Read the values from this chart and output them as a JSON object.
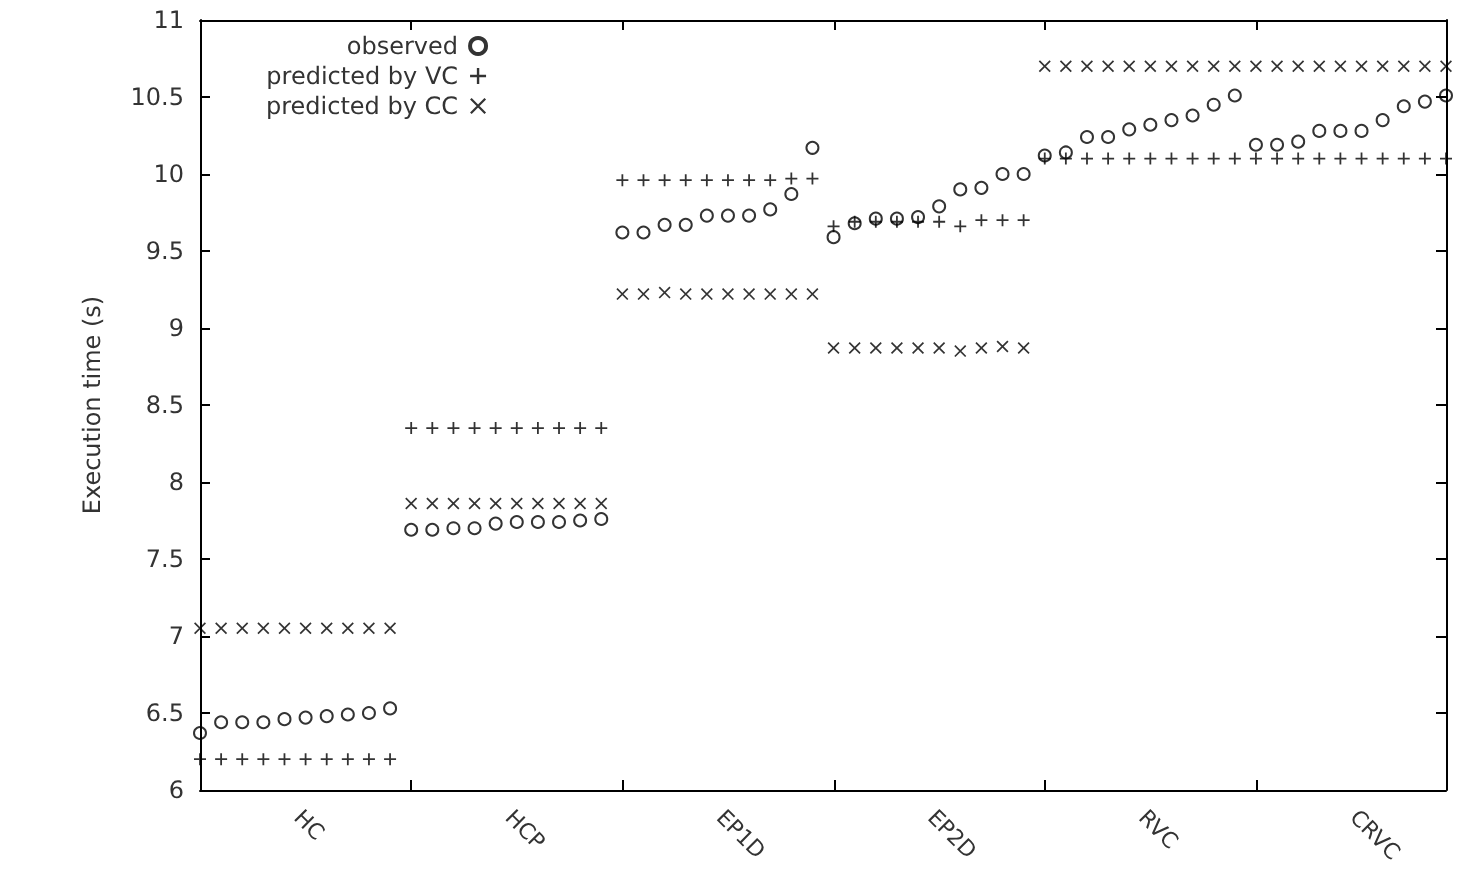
{
  "chart_data": {
    "type": "scatter",
    "ylabel": "Execution time (s)",
    "categories": [
      null,
      null,
      null,
      null,
      null,
      "HC",
      null,
      null,
      null,
      null,
      null,
      null,
      null,
      null,
      null,
      "HCP",
      null,
      null,
      null,
      null,
      null,
      null,
      null,
      null,
      null,
      "EP1D",
      null,
      null,
      null,
      null,
      null,
      null,
      null,
      null,
      null,
      "EP2D",
      null,
      null,
      null,
      null,
      null,
      null,
      null,
      null,
      null,
      "RVC",
      null,
      null,
      null,
      null,
      null,
      null,
      null,
      null,
      null,
      "CRVC",
      null,
      null,
      null,
      null
    ],
    "ylim": [
      6,
      11
    ],
    "yticks": [
      6,
      6.5,
      7,
      7.5,
      8,
      8.5,
      9,
      9.5,
      10,
      10.5,
      11
    ],
    "grid": false,
    "legend": "top left",
    "series": [
      {
        "name": "observed",
        "color": "#000000",
        "marker": "circle",
        "values": [
          6.37,
          6.44,
          6.44,
          6.44,
          6.46,
          6.47,
          6.48,
          6.49,
          6.5,
          6.53,
          7.69,
          7.69,
          7.7,
          7.7,
          7.73,
          7.74,
          7.74,
          7.74,
          7.75,
          7.76,
          9.62,
          9.62,
          9.67,
          9.67,
          9.73,
          9.73,
          9.73,
          9.77,
          9.87,
          10.17,
          9.59,
          9.68,
          9.71,
          9.71,
          9.72,
          9.79,
          9.9,
          9.91,
          10.0,
          10.0,
          10.12,
          10.14,
          10.24,
          10.24,
          10.29,
          10.32,
          10.35,
          10.38,
          10.45,
          10.51,
          10.19,
          10.19,
          10.21,
          10.28,
          10.28,
          10.28,
          10.35,
          10.44,
          10.47,
          10.51
        ]
      },
      {
        "name": "predicted by VC",
        "color": "#000000",
        "marker": "plus",
        "values": [
          6.2,
          6.2,
          6.2,
          6.2,
          6.2,
          6.2,
          6.2,
          6.2,
          6.2,
          6.2,
          8.35,
          8.35,
          8.35,
          8.35,
          8.35,
          8.35,
          8.35,
          8.35,
          8.35,
          8.35,
          9.96,
          9.96,
          9.96,
          9.96,
          9.96,
          9.96,
          9.96,
          9.96,
          9.97,
          9.97,
          9.66,
          9.69,
          9.69,
          9.69,
          9.69,
          9.69,
          9.66,
          9.7,
          9.7,
          9.7,
          10.1,
          10.1,
          10.1,
          10.1,
          10.1,
          10.1,
          10.1,
          10.1,
          10.1,
          10.1,
          10.1,
          10.1,
          10.1,
          10.1,
          10.1,
          10.1,
          10.1,
          10.1,
          10.1,
          10.1
        ]
      },
      {
        "name": "predicted by CC",
        "color": "#000000",
        "marker": "cross",
        "values": [
          7.05,
          7.05,
          7.05,
          7.05,
          7.05,
          7.05,
          7.05,
          7.05,
          7.05,
          7.05,
          7.86,
          7.86,
          7.86,
          7.86,
          7.86,
          7.86,
          7.86,
          7.86,
          7.86,
          7.86,
          9.22,
          9.22,
          9.23,
          9.22,
          9.22,
          9.22,
          9.22,
          9.22,
          9.22,
          9.22,
          8.87,
          8.87,
          8.87,
          8.87,
          8.87,
          8.87,
          8.85,
          8.87,
          8.88,
          8.87,
          10.7,
          10.7,
          10.7,
          10.7,
          10.7,
          10.7,
          10.7,
          10.7,
          10.7,
          10.7,
          10.7,
          10.7,
          10.7,
          10.7,
          10.7,
          10.7,
          10.7,
          10.7,
          10.7,
          10.7
        ]
      }
    ]
  }
}
